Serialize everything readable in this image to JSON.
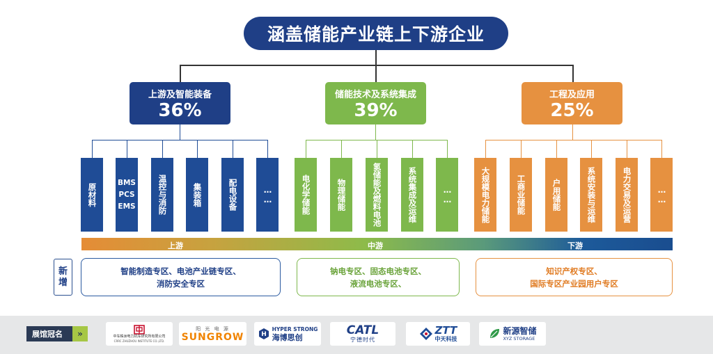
{
  "title": "涵盖储能产业链上下游企业",
  "categories": [
    {
      "label": "上游及智能装备",
      "percent": "36%",
      "color": "#1f3f86"
    },
    {
      "label": "储能技术及系统集成",
      "percent": "39%",
      "color": "#7eb84c"
    },
    {
      "label": "工程及应用",
      "percent": "25%",
      "color": "#e69140"
    }
  ],
  "columns": {
    "upstream": [
      "原材料",
      "BMS\nPCS\nEMS",
      "温控与消防",
      "集装箱",
      "配电设备",
      "……"
    ],
    "midstream": [
      "电化学储能",
      "物理储能",
      "氢储能及燃料电池",
      "系统集成及运维",
      "……"
    ],
    "downstream": [
      "大规模电力储能",
      "工商业储能",
      "户用储能",
      "系统安装与运维",
      "电力交易及运营",
      "……"
    ]
  },
  "bar_labels": {
    "upstream": "上游",
    "midstream": "中游",
    "downstream": "下游"
  },
  "new_label": "新增",
  "zones": {
    "upstream": [
      "智能制造专区、电池产业链专区、",
      "消防安全专区"
    ],
    "midstream": [
      "钠电专区、固态电池专区、",
      "液流电池专区、"
    ],
    "downstream": [
      "知识产权专区、",
      "国际专区产业园用户专区"
    ]
  },
  "footer": {
    "sponsor_label": "展馆冠名",
    "arrow": "»",
    "logos": [
      {
        "name": "中车株洲电力机车研究所有限公司",
        "sub": "CRRC ZHUZHOU INSTITUTE CO.,LTD."
      },
      {
        "name": "阳 光 电 源",
        "sub": "SUNGROW"
      },
      {
        "name": "HYPER STRONG",
        "sub": "海博思创"
      },
      {
        "name": "CATL",
        "sub": "宁德时代"
      },
      {
        "name": "ZTT",
        "sub": "中天科技"
      },
      {
        "name": "新源智储",
        "sub": "XYZ STORAGE"
      }
    ]
  },
  "colors": {
    "blue": "#1f4c96",
    "green": "#7eb84c",
    "orange": "#e69140",
    "navy": "#1f3f86"
  }
}
